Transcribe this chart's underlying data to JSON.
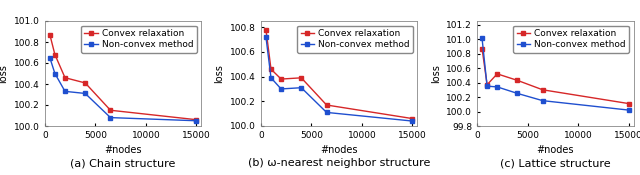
{
  "subplots": [
    {
      "title": "(a) Chain structure",
      "xlabel": "#nodes",
      "ylabel": "loss",
      "xnodes": [
        500,
        1000,
        2000,
        4000,
        6500,
        15000
      ],
      "convex": [
        100.87,
        100.68,
        100.46,
        100.41,
        100.15,
        100.06
      ],
      "nonconvex": [
        100.65,
        100.5,
        100.33,
        100.31,
        100.08,
        100.05
      ],
      "ylim": [
        100.0,
        101.0
      ],
      "yticks": [
        100.0,
        100.2,
        100.4,
        100.6,
        100.8,
        101.0
      ],
      "xticks": [
        0,
        5000,
        10000,
        15000
      ]
    },
    {
      "title": "(b) ω-nearest neighbor structure",
      "xlabel": "#nodes",
      "ylabel": "loss",
      "xnodes": [
        500,
        1000,
        2000,
        4000,
        6500,
        15000
      ],
      "convex": [
        100.78,
        100.46,
        100.38,
        100.39,
        100.17,
        100.06
      ],
      "nonconvex": [
        100.72,
        100.39,
        100.3,
        100.31,
        100.11,
        100.04
      ],
      "ylim": [
        100.0,
        100.85
      ],
      "yticks": [
        100.0,
        100.2,
        100.4,
        100.6,
        100.8
      ],
      "xticks": [
        0,
        5000,
        10000,
        15000
      ]
    },
    {
      "title": "(c) Lattice structure",
      "xlabel": "#nodes",
      "ylabel": "loss",
      "xnodes": [
        500,
        1000,
        2000,
        4000,
        6500,
        15000
      ],
      "convex": [
        100.87,
        100.37,
        100.52,
        100.43,
        100.3,
        100.11
      ],
      "nonconvex": [
        101.01,
        100.35,
        100.34,
        100.25,
        100.15,
        100.02
      ],
      "ylim": [
        99.8,
        101.25
      ],
      "yticks": [
        99.8,
        100.0,
        100.2,
        100.4,
        100.6,
        100.8,
        101.0,
        101.2
      ],
      "xticks": [
        0,
        5000,
        10000,
        15000
      ]
    }
  ],
  "convex_color": "#d62728",
  "nonconvex_color": "#1f4fcf",
  "legend_label_convex": "Convex relaxation",
  "legend_label_nonconvex": "Non-convex method",
  "fontsize_axis_label": 7,
  "fontsize_tick": 6.5,
  "fontsize_title": 8,
  "fontsize_legend": 6.5,
  "marker_size": 3,
  "line_width": 1.0
}
